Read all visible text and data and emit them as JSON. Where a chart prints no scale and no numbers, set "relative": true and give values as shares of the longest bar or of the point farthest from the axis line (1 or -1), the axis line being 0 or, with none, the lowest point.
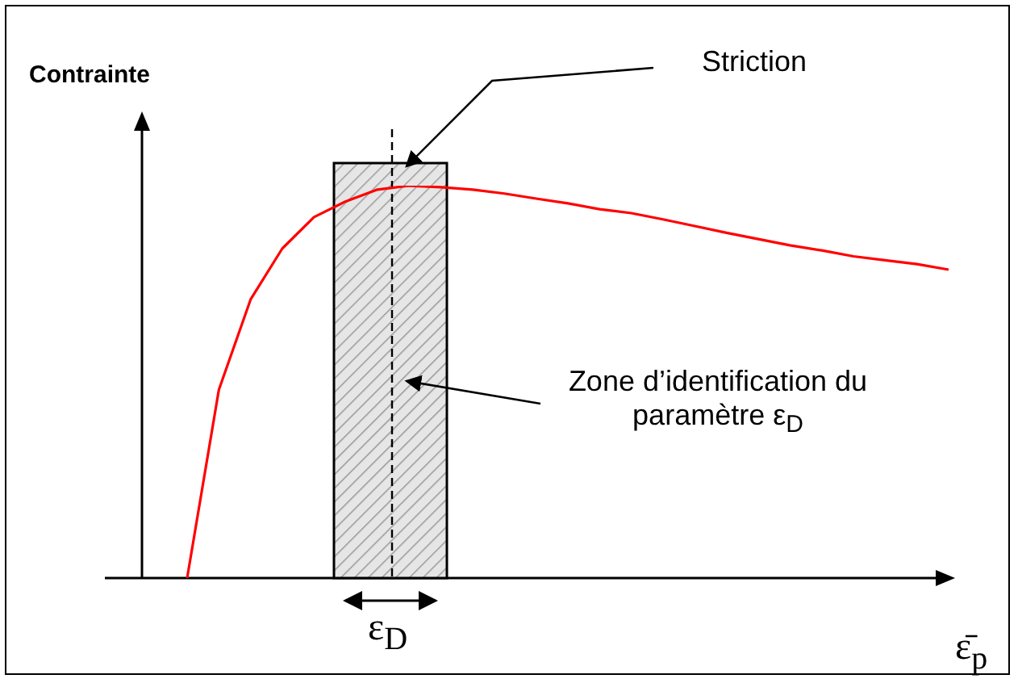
{
  "chart_data": {
    "type": "line",
    "relative": true,
    "ylabel": "Contrainte",
    "xlabel": "ε̄$_{p}$",
    "annotations": [
      "Striction",
      "Zone d’identification du paramètre ε$_{D}$",
      "ε$_{D}$"
    ],
    "categories": [
      null,
      null,
      null,
      null,
      null,
      null,
      null,
      null,
      null,
      null,
      null,
      null,
      null,
      null,
      null,
      null,
      null,
      null,
      null,
      null,
      null,
      null,
      null,
      null,
      null
    ],
    "series": [
      {
        "color": "#ff0000",
        "values": [
          0,
          0.48,
          0.71,
          0.84,
          0.92,
          0.96,
          0.99,
          1,
          0.996,
          0.99,
          0.98,
          0.967,
          0.955,
          0.94,
          0.93,
          0.914,
          0.897,
          0.88,
          0.864,
          0.848,
          0.835,
          0.82,
          0.81,
          0.8,
          0.786
        ]
      }
    ],
    "marker": "none",
    "line_style": "solid",
    "legend": false,
    "tick_labels": false
  }
}
